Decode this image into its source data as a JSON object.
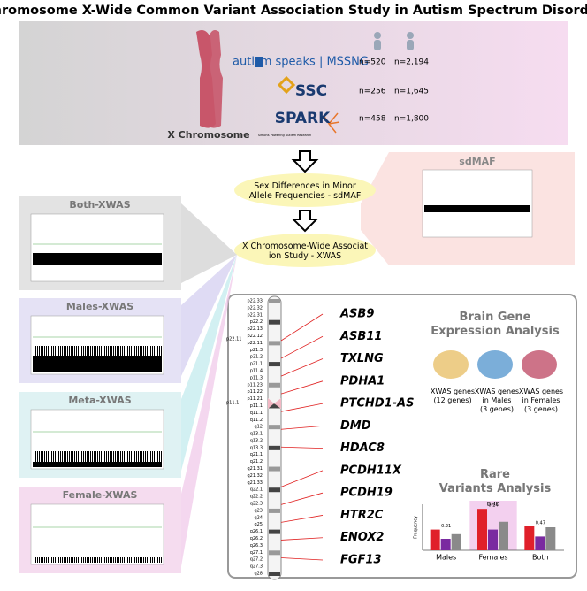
{
  "title": "Chromosome X-Wide Common Variant Association Study in Autism Spectrum Disorder",
  "cohorts": {
    "chromosome_label": "X Chromosome",
    "rows": [
      {
        "name": "autism speaks | MSSNG",
        "n_cases": "n=520",
        "n_controls": "n=2,194"
      },
      {
        "name": "SSC",
        "n_cases": "n=256",
        "n_controls": "n=1,645"
      },
      {
        "name": "SPARK",
        "subtitle": "Simons Powering Autism Research",
        "n_cases": "n=458",
        "n_controls": "n=1,800"
      }
    ]
  },
  "steps": [
    "Sex Differences in Minor Allele Frequencies - sdMAF",
    "X Chromosome-Wide Association Study - XWAS"
  ],
  "sdmaf_panel": "sdMAF",
  "xwas_panels": [
    "Both-XWAS",
    "Males-XWAS",
    "Meta-XWAS",
    "Female-XWAS"
  ],
  "chromosome": {
    "side_labels": [
      "p22.11",
      "p11.1"
    ],
    "bands": [
      "p22.33",
      "p22.32",
      "p22.31",
      "p22.2",
      "p22.13",
      "p22.12",
      "p22.11",
      "p21.3",
      "p21.2",
      "p21.1",
      "p11.4",
      "p11.3",
      "p11.23",
      "p11.22",
      "p11.21",
      "p11.1",
      "q11.1",
      "q11.2",
      "q12",
      "q13.1",
      "q13.2",
      "q13.3",
      "q21.1",
      "q21.2",
      "q21.31",
      "q21.32",
      "q21.33",
      "q22.1",
      "q22.2",
      "q22.3",
      "q23",
      "q24",
      "q25",
      "q26.1",
      "q26.2",
      "q26.3",
      "q27.1",
      "q27.2",
      "q27.3",
      "q28"
    ],
    "genes": [
      "ASB9",
      "ASB11",
      "TXLNG",
      "PDHA1",
      "PTCHD1-AS",
      "DMD",
      "HDAC8",
      "PCDH11X",
      "PCDH19",
      "HTR2C",
      "ENOX2",
      "FGF13"
    ]
  },
  "brain": {
    "title": "Brain Gene Expression Analysis",
    "captions": [
      "XWAS genes (12 genes)",
      "XWAS genes in Males (3 genes)",
      "XWAS genes in Females (3 genes)"
    ]
  },
  "rare_variants": {
    "title": "Rare Variants Analysis",
    "y_label": "Frequency",
    "highlight": "DMD",
    "categories": [
      "Males",
      "Females",
      "Both"
    ],
    "series": [
      {
        "color": "#e0202a",
        "values": [
          0.45,
          0.9,
          0.52
        ]
      },
      {
        "color": "#7a2aa0",
        "values": [
          0.25,
          0.45,
          0.3
        ]
      },
      {
        "color": "#8a8a8a",
        "values": [
          0.35,
          0.62,
          0.5
        ]
      }
    ],
    "annotations": [
      "0.21",
      "0.24",
      "0.47"
    ]
  }
}
